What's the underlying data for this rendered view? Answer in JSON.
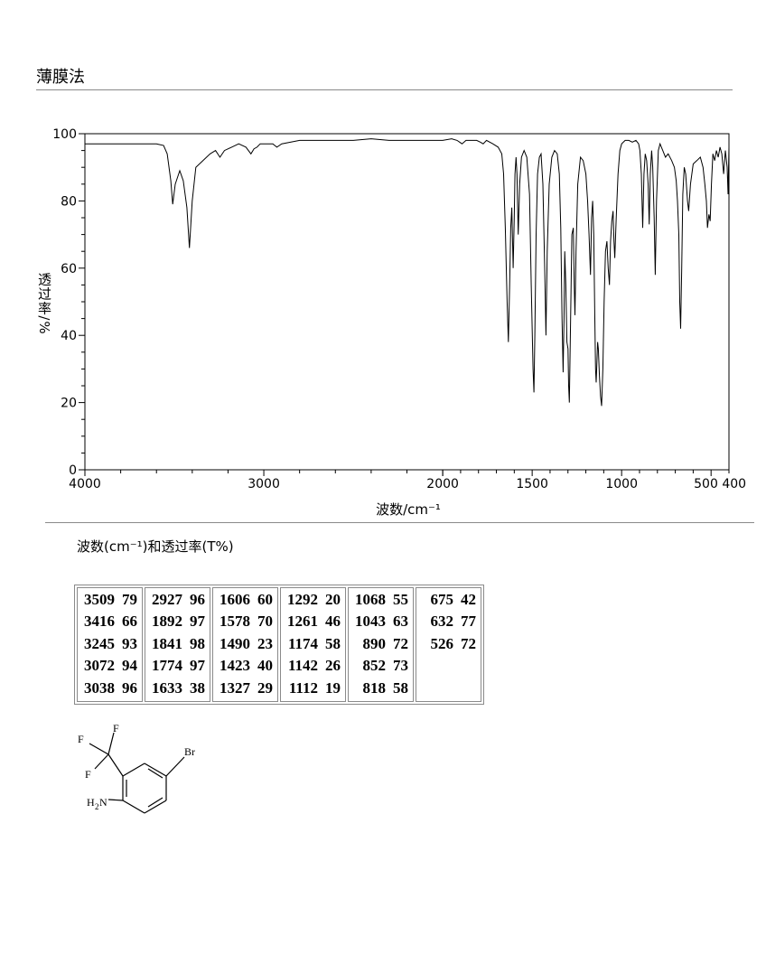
{
  "header": {
    "title": "薄膜法"
  },
  "chart_data": {
    "type": "line",
    "title": "",
    "xlabel": "波数/cm⁻¹",
    "ylabel": "透过率/%",
    "xlim": [
      4000,
      400
    ],
    "ylim": [
      0,
      100
    ],
    "x_ticks": [
      4000,
      3000,
      2000,
      1500,
      1000,
      500,
      400
    ],
    "x_tick_labels": [
      "4000",
      "3000",
      "2000",
      "1500",
      "1000",
      "500 400"
    ],
    "y_ticks": [
      0,
      20,
      40,
      60,
      80,
      100
    ],
    "grid": false,
    "series": [
      {
        "x": [
          4000,
          3800,
          3600,
          3560,
          3540,
          3520,
          3509,
          3495,
          3470,
          3450,
          3430,
          3416,
          3400,
          3380,
          3340,
          3300,
          3270,
          3245,
          3220,
          3180,
          3140,
          3100,
          3072,
          3055,
          3038,
          3020,
          2990,
          2950,
          2927,
          2900,
          2800,
          2700,
          2600,
          2500,
          2400,
          2300,
          2200,
          2100,
          2000,
          1950,
          1920,
          1892,
          1870,
          1841,
          1810,
          1790,
          1774,
          1755,
          1720,
          1690,
          1670,
          1660,
          1650,
          1640,
          1633,
          1626,
          1620,
          1614,
          1606,
          1600,
          1596,
          1590,
          1585,
          1578,
          1570,
          1560,
          1545,
          1530,
          1515,
          1505,
          1495,
          1490,
          1485,
          1478,
          1470,
          1460,
          1450,
          1440,
          1430,
          1423,
          1416,
          1405,
          1390,
          1375,
          1360,
          1348,
          1340,
          1333,
          1327,
          1322,
          1318,
          1312,
          1306,
          1300,
          1296,
          1292,
          1285,
          1278,
          1270,
          1265,
          1261,
          1255,
          1245,
          1230,
          1215,
          1200,
          1190,
          1182,
          1174,
          1168,
          1162,
          1156,
          1150,
          1146,
          1142,
          1138,
          1134,
          1130,
          1124,
          1118,
          1112,
          1105,
          1098,
          1090,
          1082,
          1075,
          1068,
          1062,
          1055,
          1048,
          1043,
          1038,
          1030,
          1020,
          1010,
          1000,
          980,
          960,
          940,
          920,
          905,
          898,
          890,
          882,
          875,
          868,
          860,
          852,
          846,
          840,
          832,
          826,
          818,
          812,
          805,
          795,
          785,
          770,
          755,
          740,
          720,
          705,
          695,
          688,
          680,
          675,
          670,
          664,
          658,
          650,
          642,
          632,
          625,
          615,
          600,
          580,
          560,
          545,
          535,
          526,
          520,
          512,
          505,
          498,
          490,
          480,
          470,
          460,
          450,
          440,
          430,
          420,
          410,
          405,
          400
        ],
        "y": [
          97,
          97,
          97,
          96.5,
          94,
          86,
          79,
          85,
          89,
          86,
          78,
          66,
          80,
          90,
          92,
          94,
          95,
          93,
          95,
          96,
          97,
          96,
          94,
          95.5,
          96,
          97,
          97,
          97,
          96,
          97,
          98,
          98,
          98,
          98,
          98.5,
          98,
          98,
          98,
          98,
          98.5,
          98,
          97,
          98,
          98,
          98,
          97.5,
          97,
          98,
          97,
          96,
          94,
          88,
          72,
          50,
          38,
          55,
          72,
          78,
          60,
          75,
          88,
          93,
          88,
          70,
          85,
          93,
          95,
          93,
          82,
          55,
          30,
          23,
          40,
          70,
          88,
          93,
          94,
          85,
          60,
          40,
          65,
          85,
          93,
          95,
          94,
          88,
          72,
          45,
          29,
          45,
          65,
          55,
          38,
          36,
          25,
          20,
          45,
          70,
          72,
          55,
          46,
          65,
          85,
          93,
          92,
          88,
          80,
          70,
          58,
          75,
          80,
          70,
          45,
          30,
          26,
          32,
          38,
          36,
          28,
          22,
          19,
          30,
          50,
          65,
          68,
          60,
          55,
          68,
          74,
          77,
          68,
          63,
          75,
          88,
          95,
          97,
          98,
          98,
          97.5,
          98,
          97,
          95,
          88,
          72,
          88,
          94,
          92,
          85,
          73,
          88,
          95,
          90,
          75,
          58,
          80,
          95,
          97,
          95,
          93,
          94,
          92,
          90,
          86,
          80,
          70,
          50,
          42,
          60,
          82,
          90,
          88,
          80,
          77,
          85,
          91,
          92,
          93,
          90,
          85,
          80,
          72,
          76,
          74,
          85,
          94,
          92,
          95,
          93,
          96,
          94,
          88,
          95,
          90,
          82,
          96
        ],
        "line_color": "#000000"
      }
    ]
  },
  "peaks": {
    "caption": "波数(cm⁻¹)和透过率(T%)",
    "columns": [
      [
        [
          "3509",
          "79"
        ],
        [
          "3416",
          "66"
        ],
        [
          "3245",
          "93"
        ],
        [
          "3072",
          "94"
        ],
        [
          "3038",
          "96"
        ]
      ],
      [
        [
          "2927",
          "96"
        ],
        [
          "1892",
          "97"
        ],
        [
          "1841",
          "98"
        ],
        [
          "1774",
          "97"
        ],
        [
          "1633",
          "38"
        ]
      ],
      [
        [
          "1606",
          "60"
        ],
        [
          "1578",
          "70"
        ],
        [
          "1490",
          "23"
        ],
        [
          "1423",
          "40"
        ],
        [
          "1327",
          "29"
        ]
      ],
      [
        [
          "1292",
          "20"
        ],
        [
          "1261",
          "46"
        ],
        [
          "1174",
          "58"
        ],
        [
          "1142",
          "26"
        ],
        [
          "1112",
          "19"
        ]
      ],
      [
        [
          "1068",
          "55"
        ],
        [
          "1043",
          "63"
        ],
        [
          "890",
          "72"
        ],
        [
          "852",
          "73"
        ],
        [
          "818",
          "58"
        ]
      ],
      [
        [
          "675",
          "42"
        ],
        [
          "632",
          "77"
        ],
        [
          "526",
          "72"
        ]
      ]
    ]
  },
  "structure": {
    "labels": {
      "f1": "F",
      "f2": "F",
      "f3": "F",
      "br": "Br",
      "h": "H",
      "h_sub": "2",
      "n": "N"
    }
  }
}
